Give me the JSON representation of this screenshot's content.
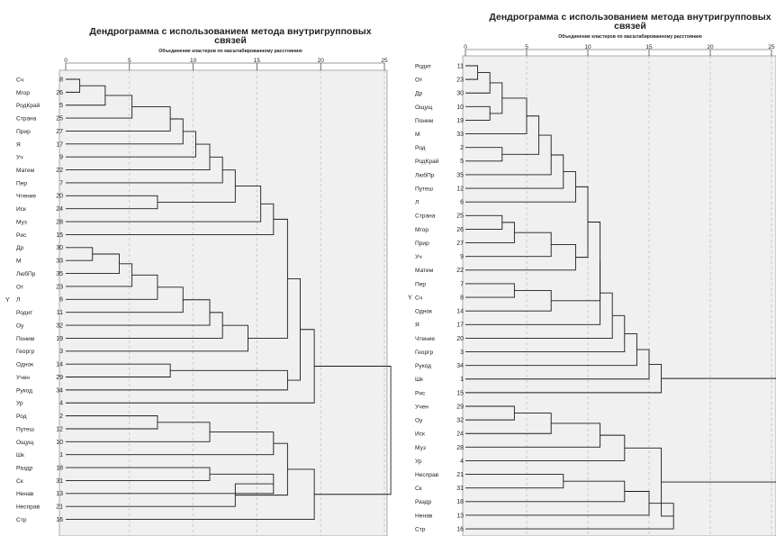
{
  "chart_data": [
    {
      "type": "dendrogram",
      "title_line1": "Дендрограмма с использованием метода внутригрупповых",
      "title_line2": "связей",
      "subtitle": "Объединение кластеров по масштабированному расстоянию",
      "ylabel": "Y",
      "xlim": [
        0,
        25
      ],
      "xticks": [
        0,
        5,
        10,
        15,
        20,
        25
      ],
      "leaves": [
        {
          "label": "Сч",
          "num": "8"
        },
        {
          "label": "Мгор",
          "num": "26"
        },
        {
          "label": "РодКрай",
          "num": "5"
        },
        {
          "label": "Страна",
          "num": "25"
        },
        {
          "label": "Прир",
          "num": "27"
        },
        {
          "label": "Я",
          "num": "17"
        },
        {
          "label": "Уч",
          "num": "9"
        },
        {
          "label": "Матем",
          "num": "22"
        },
        {
          "label": "Пер",
          "num": "7"
        },
        {
          "label": "Чтение",
          "num": "20"
        },
        {
          "label": "Иск",
          "num": "24"
        },
        {
          "label": "Муз",
          "num": "28"
        },
        {
          "label": "Рис",
          "num": "15"
        },
        {
          "label": "Др",
          "num": "30"
        },
        {
          "label": "М",
          "num": "33"
        },
        {
          "label": "ЛюбПр",
          "num": "35"
        },
        {
          "label": "От",
          "num": "23"
        },
        {
          "label": "Л",
          "num": "6"
        },
        {
          "label": "Родит",
          "num": "11"
        },
        {
          "label": "Оу",
          "num": "32"
        },
        {
          "label": "Поним",
          "num": "19"
        },
        {
          "label": "Георгр",
          "num": "3"
        },
        {
          "label": "Однок",
          "num": "14"
        },
        {
          "label": "Учен",
          "num": "29"
        },
        {
          "label": "Рукод",
          "num": "34"
        },
        {
          "label": "Ур",
          "num": "4"
        },
        {
          "label": "Род",
          "num": "2"
        },
        {
          "label": "Путеш",
          "num": "12"
        },
        {
          "label": "Ощущ",
          "num": "10"
        },
        {
          "label": "Шк",
          "num": "1"
        },
        {
          "label": "Раздр",
          "num": "18"
        },
        {
          "label": "Ск",
          "num": "31"
        },
        {
          "label": "Ненав",
          "num": "13"
        },
        {
          "label": "Несправ",
          "num": "21"
        },
        {
          "label": "Стр",
          "num": "16"
        }
      ],
      "merges": [
        {
          "a": 0,
          "b": 1,
          "h": 1.1
        },
        {
          "a": -1,
          "b": 2,
          "h": 3.1
        },
        {
          "a": -2,
          "b": 3,
          "h": 5.2
        },
        {
          "a": -3,
          "b": 4,
          "h": 8.2
        },
        {
          "a": -4,
          "b": 5,
          "h": 9.2
        },
        {
          "a": -5,
          "b": 6,
          "h": 10.2
        },
        {
          "a": -6,
          "b": 7,
          "h": 11.3
        },
        {
          "a": -7,
          "b": 8,
          "h": 12.3
        },
        {
          "a": 9,
          "b": 10,
          "h": 7.2
        },
        {
          "a": -8,
          "b": -9,
          "h": 13.3
        },
        {
          "a": -10,
          "b": 11,
          "h": 15.3
        },
        {
          "a": -11,
          "b": 12,
          "h": 16.3
        },
        {
          "a": 13,
          "b": 14,
          "h": 2.1
        },
        {
          "a": -13,
          "b": 15,
          "h": 4.2
        },
        {
          "a": -14,
          "b": 16,
          "h": 5.2
        },
        {
          "a": -15,
          "b": 17,
          "h": 7.2
        },
        {
          "a": -16,
          "b": 18,
          "h": 9.2
        },
        {
          "a": -17,
          "b": 19,
          "h": 11.3
        },
        {
          "a": -18,
          "b": 20,
          "h": 12.3
        },
        {
          "a": -19,
          "b": 21,
          "h": 14.3
        },
        {
          "a": -12,
          "b": -20,
          "h": 17.4
        },
        {
          "a": 22,
          "b": 23,
          "h": 8.2
        },
        {
          "a": -22,
          "b": 24,
          "h": 17.4
        },
        {
          "a": -21,
          "b": -23,
          "h": 18.4
        },
        {
          "a": -24,
          "b": 25,
          "h": 19.5
        },
        {
          "a": 26,
          "b": 27,
          "h": 7.2
        },
        {
          "a": -26,
          "b": 28,
          "h": 11.3
        },
        {
          "a": -27,
          "b": 29,
          "h": 16.3
        },
        {
          "a": 30,
          "b": 31,
          "h": 11.3
        },
        {
          "a": -29,
          "b": 32,
          "h": 16.3
        },
        {
          "a": -30,
          "b": 33,
          "h": 13.3
        },
        {
          "a": -28,
          "b": -31,
          "h": 17.4
        },
        {
          "a": -32,
          "b": 34,
          "h": 19.5
        },
        {
          "a": -25,
          "b": -33,
          "h": 25.5
        }
      ]
    },
    {
      "type": "dendrogram",
      "title_line1": "Дендрограмма с использованием метода внутригрупповых",
      "title_line2": "связей",
      "subtitle": "Объединение кластеров по масштабированному расстоянию",
      "ylabel": "Y",
      "xlim": [
        0,
        25
      ],
      "xticks": [
        0,
        5,
        10,
        15,
        20,
        25
      ],
      "leaves": [
        {
          "label": "Родит",
          "num": "11"
        },
        {
          "label": "От",
          "num": "23"
        },
        {
          "label": "Др",
          "num": "30"
        },
        {
          "label": "Ощущ",
          "num": "10"
        },
        {
          "label": "Поним",
          "num": "19"
        },
        {
          "label": "М",
          "num": "33"
        },
        {
          "label": "Род",
          "num": "2"
        },
        {
          "label": "РодКрай",
          "num": "5"
        },
        {
          "label": "ЛюбПр",
          "num": "35"
        },
        {
          "label": "Путеш",
          "num": "12"
        },
        {
          "label": "Л",
          "num": "6"
        },
        {
          "label": "Страна",
          "num": "25"
        },
        {
          "label": "Мгор",
          "num": "26"
        },
        {
          "label": "Прир",
          "num": "27"
        },
        {
          "label": "Уч",
          "num": "9"
        },
        {
          "label": "Матем",
          "num": "22"
        },
        {
          "label": "Пер",
          "num": "7"
        },
        {
          "label": "Сч",
          "num": "8"
        },
        {
          "label": "Однок",
          "num": "14"
        },
        {
          "label": "Я",
          "num": "17"
        },
        {
          "label": "Чтение",
          "num": "20"
        },
        {
          "label": "Георгр",
          "num": "3"
        },
        {
          "label": "Рукод",
          "num": "34"
        },
        {
          "label": "Шк",
          "num": "1"
        },
        {
          "label": "Рис",
          "num": "15"
        },
        {
          "label": "Учен",
          "num": "29"
        },
        {
          "label": "Оу",
          "num": "32"
        },
        {
          "label": "Иск",
          "num": "24"
        },
        {
          "label": "Муз",
          "num": "28"
        },
        {
          "label": "Ур",
          "num": "4"
        },
        {
          "label": "Несправ",
          "num": "21"
        },
        {
          "label": "Ск",
          "num": "31"
        },
        {
          "label": "Раздр",
          "num": "18"
        },
        {
          "label": "Ненав",
          "num": "13"
        },
        {
          "label": "Стр",
          "num": "16"
        }
      ],
      "merges": [
        {
          "a": 0,
          "b": 1,
          "h": 1.0
        },
        {
          "a": -1,
          "b": 2,
          "h": 2.0
        },
        {
          "a": 3,
          "b": 4,
          "h": 2.0
        },
        {
          "a": -2,
          "b": -3,
          "h": 3.0
        },
        {
          "a": -4,
          "b": 5,
          "h": 5.0
        },
        {
          "a": 6,
          "b": 7,
          "h": 3.0
        },
        {
          "a": -5,
          "b": -6,
          "h": 6.0
        },
        {
          "a": -7,
          "b": 8,
          "h": 7.0
        },
        {
          "a": -8,
          "b": 9,
          "h": 8.0
        },
        {
          "a": -9,
          "b": 10,
          "h": 9.0
        },
        {
          "a": 11,
          "b": 12,
          "h": 3.0
        },
        {
          "a": -11,
          "b": 13,
          "h": 4.0
        },
        {
          "a": -12,
          "b": 14,
          "h": 7.0
        },
        {
          "a": -13,
          "b": 15,
          "h": 9.0
        },
        {
          "a": 16,
          "b": 17,
          "h": 4.0
        },
        {
          "a": -15,
          "b": 18,
          "h": 7.0
        },
        {
          "a": -10,
          "b": -14,
          "h": 10.0
        },
        {
          "a": -17,
          "b": -16,
          "h": 11.0
        },
        {
          "a": -18,
          "b": 19,
          "h": 11.0
        },
        {
          "a": -19,
          "b": 20,
          "h": 12.0
        },
        {
          "a": -20,
          "b": 21,
          "h": 13.0
        },
        {
          "a": -21,
          "b": 22,
          "h": 14.0
        },
        {
          "a": -22,
          "b": 23,
          "h": 15.0
        },
        {
          "a": -23,
          "b": 24,
          "h": 16.0
        },
        {
          "a": 25,
          "b": 26,
          "h": 4.0
        },
        {
          "a": -25,
          "b": 27,
          "h": 7.0
        },
        {
          "a": -26,
          "b": 28,
          "h": 11.0
        },
        {
          "a": -27,
          "b": 29,
          "h": 13.0
        },
        {
          "a": 30,
          "b": 31,
          "h": 8.0
        },
        {
          "a": -29,
          "b": 32,
          "h": 13.0
        },
        {
          "a": -30,
          "b": 33,
          "h": 15.0
        },
        {
          "a": -31,
          "b": 34,
          "h": 17.0
        },
        {
          "a": -28,
          "b": -32,
          "h": 16.0
        },
        {
          "a": -24,
          "b": -33,
          "h": 26.0
        }
      ]
    }
  ]
}
